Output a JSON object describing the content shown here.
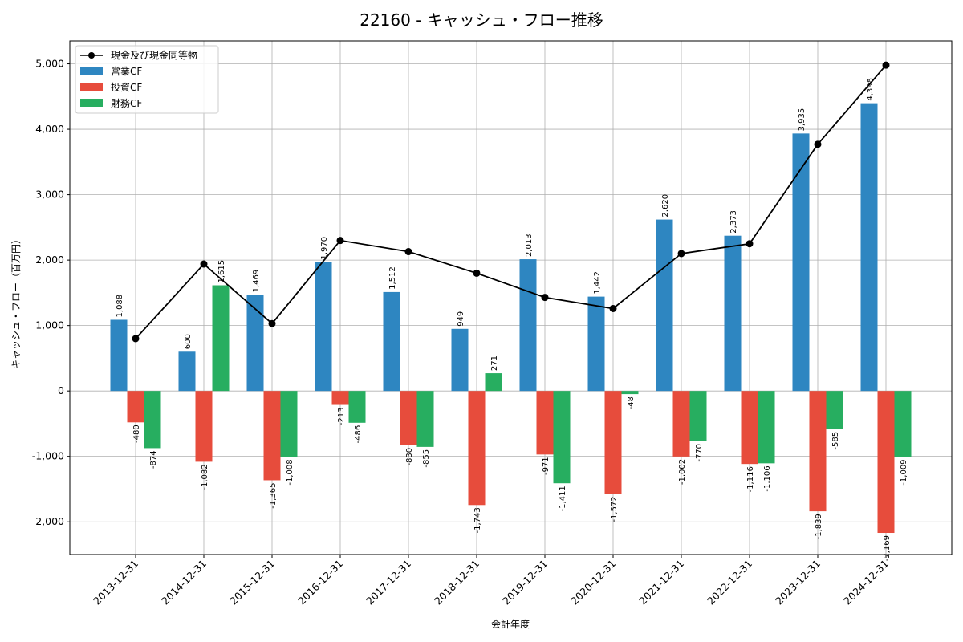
{
  "chart_data": {
    "type": "bar",
    "title": "22160 - キャッシュ・フロー推移",
    "xlabel": "会計年度",
    "ylabel": "キャッシュ・フロー（百万円）",
    "ylim": [
      -2500,
      5350
    ],
    "yticks": [
      -2000,
      -1000,
      0,
      1000,
      2000,
      3000,
      4000,
      5000
    ],
    "ytick_labels": [
      "-2,000",
      "-1,000",
      "0",
      "1,000",
      "2,000",
      "3,000",
      "4,000",
      "5,000"
    ],
    "grid": true,
    "legend_position": "top-left",
    "categories": [
      "2013-12-31",
      "2014-12-31",
      "2015-12-31",
      "2016-12-31",
      "2017-12-31",
      "2018-12-31",
      "2019-12-31",
      "2020-12-31",
      "2021-12-31",
      "2022-12-31",
      "2023-12-31",
      "2024-12-31"
    ],
    "series": [
      {
        "name": "営業CF",
        "kind": "bar",
        "color": "#2e86c1",
        "values": [
          1088,
          600,
          1469,
          1970,
          1512,
          949,
          2013,
          1442,
          2620,
          2373,
          3935,
          4398
        ],
        "labels": [
          "1,088",
          "600",
          "1,469",
          "1,970",
          "1,512",
          "949",
          "2,013",
          "1,442",
          "2,620",
          "2,373",
          "3,935",
          "4,398"
        ]
      },
      {
        "name": "投資CF",
        "kind": "bar",
        "color": "#e74c3c",
        "values": [
          -480,
          -1082,
          -1365,
          -213,
          -830,
          -1743,
          -971,
          -1572,
          -1002,
          -1116,
          -1839,
          -2169
        ],
        "labels": [
          "-480",
          "-1,082",
          "-1,365",
          "-213",
          "-830",
          "-1,743",
          "-971",
          "-1,572",
          "-1,002",
          "-1,116",
          "-1,839",
          "-2,169"
        ]
      },
      {
        "name": "財務CF",
        "kind": "bar",
        "color": "#27ae60",
        "values": [
          -874,
          1615,
          -1008,
          -486,
          -855,
          271,
          -1411,
          -48,
          -770,
          -1106,
          -585,
          -1009
        ],
        "labels": [
          "-874",
          "1,615",
          "-1,008",
          "-486",
          "-855",
          "271",
          "-1,411",
          "-48",
          "-770",
          "-1,106",
          "-585",
          "-1,009"
        ]
      },
      {
        "name": "現金及び現金同等物",
        "kind": "line",
        "color": "#000000",
        "values": [
          800,
          1940,
          1030,
          2300,
          2130,
          1800,
          1430,
          1260,
          2100,
          2250,
          3770,
          4980
        ]
      }
    ]
  }
}
